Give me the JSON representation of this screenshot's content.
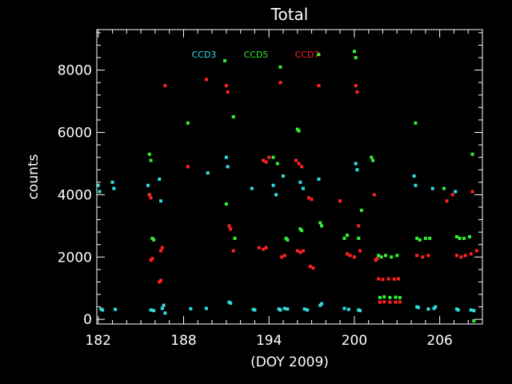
{
  "chart_data": {
    "type": "scatter",
    "title": "Total",
    "xlabel": "(DOY 2009)",
    "ylabel": "counts",
    "xlim": [
      181.9,
      209.0
    ],
    "ylim": [
      -150,
      9300
    ],
    "x_ticks": [
      182,
      188,
      194,
      200,
      206
    ],
    "y_ticks": [
      0,
      2000,
      4000,
      6000,
      8000
    ],
    "x_minor_step": 1,
    "y_minor_step": 400,
    "grid": false,
    "legend_position": "top",
    "series": [
      {
        "name": "CCD3",
        "color": "#33dddd",
        "points": [
          [
            182.0,
            4300
          ],
          [
            182.1,
            4100
          ],
          [
            182.2,
            330
          ],
          [
            182.3,
            300
          ],
          [
            183.0,
            4400
          ],
          [
            183.1,
            4200
          ],
          [
            183.2,
            320
          ],
          [
            185.5,
            4300
          ],
          [
            185.6,
            4000
          ],
          [
            185.7,
            300
          ],
          [
            185.9,
            280
          ],
          [
            186.3,
            4500
          ],
          [
            186.4,
            3800
          ],
          [
            186.5,
            350
          ],
          [
            186.6,
            450
          ],
          [
            186.7,
            200
          ],
          [
            188.5,
            340
          ],
          [
            189.6,
            350
          ],
          [
            189.7,
            4700
          ],
          [
            191.0,
            5200
          ],
          [
            191.1,
            4900
          ],
          [
            191.2,
            550
          ],
          [
            191.3,
            520
          ],
          [
            192.8,
            4200
          ],
          [
            192.9,
            320
          ],
          [
            193.0,
            300
          ],
          [
            194.3,
            4300
          ],
          [
            194.5,
            4000
          ],
          [
            194.7,
            330
          ],
          [
            194.8,
            300
          ],
          [
            195.0,
            4600
          ],
          [
            195.1,
            350
          ],
          [
            195.3,
            330
          ],
          [
            196.2,
            4400
          ],
          [
            196.4,
            4200
          ],
          [
            196.5,
            330
          ],
          [
            196.7,
            300
          ],
          [
            197.5,
            4500
          ],
          [
            197.6,
            450
          ],
          [
            197.7,
            500
          ],
          [
            199.3,
            350
          ],
          [
            199.6,
            320
          ],
          [
            200.1,
            5000
          ],
          [
            200.2,
            4800
          ],
          [
            200.3,
            300
          ],
          [
            200.4,
            280
          ],
          [
            204.2,
            4600
          ],
          [
            204.3,
            4300
          ],
          [
            204.4,
            400
          ],
          [
            204.5,
            380
          ],
          [
            205.2,
            330
          ],
          [
            205.5,
            4200
          ],
          [
            205.6,
            350
          ],
          [
            205.7,
            400
          ],
          [
            207.1,
            4100
          ],
          [
            207.2,
            330
          ],
          [
            207.3,
            300
          ],
          [
            208.2,
            300
          ],
          [
            208.4,
            280
          ]
        ]
      },
      {
        "name": "CCD5",
        "color": "#33ee33",
        "points": [
          [
            185.6,
            5300
          ],
          [
            185.7,
            5100
          ],
          [
            185.8,
            2600
          ],
          [
            185.9,
            2550
          ],
          [
            188.3,
            6300
          ],
          [
            190.9,
            8300
          ],
          [
            191.0,
            3700
          ],
          [
            191.5,
            6500
          ],
          [
            191.6,
            2600
          ],
          [
            194.3,
            5200
          ],
          [
            194.6,
            5000
          ],
          [
            194.8,
            8100
          ],
          [
            195.2,
            2600
          ],
          [
            195.3,
            2550
          ],
          [
            196.0,
            6100
          ],
          [
            196.1,
            6050
          ],
          [
            196.2,
            2900
          ],
          [
            196.3,
            2850
          ],
          [
            197.5,
            8500
          ],
          [
            197.6,
            3100
          ],
          [
            197.7,
            3000
          ],
          [
            199.3,
            2600
          ],
          [
            199.5,
            2700
          ],
          [
            200.0,
            8600
          ],
          [
            200.1,
            8400
          ],
          [
            200.3,
            2600
          ],
          [
            200.5,
            3500
          ],
          [
            201.2,
            5200
          ],
          [
            201.3,
            5100
          ],
          [
            201.7,
            2050
          ],
          [
            201.9,
            2000
          ],
          [
            202.2,
            2050
          ],
          [
            202.6,
            2000
          ],
          [
            203.0,
            2050
          ],
          [
            201.8,
            700
          ],
          [
            202.1,
            720
          ],
          [
            202.5,
            700
          ],
          [
            202.9,
            710
          ],
          [
            203.2,
            700
          ],
          [
            204.3,
            6300
          ],
          [
            204.4,
            2600
          ],
          [
            204.6,
            2550
          ],
          [
            205.0,
            2600
          ],
          [
            205.3,
            2600
          ],
          [
            206.3,
            4200
          ],
          [
            207.2,
            2650
          ],
          [
            207.4,
            2600
          ],
          [
            207.7,
            2600
          ],
          [
            208.1,
            2650
          ],
          [
            208.3,
            5300
          ],
          [
            208.4,
            -50
          ]
        ]
      },
      {
        "name": "CCD7",
        "color": "#ff2222",
        "points": [
          [
            185.6,
            4000
          ],
          [
            185.7,
            3900
          ],
          [
            185.7,
            1900
          ],
          [
            185.8,
            1950
          ],
          [
            186.4,
            2200
          ],
          [
            186.5,
            2300
          ],
          [
            186.3,
            1200
          ],
          [
            186.4,
            1250
          ],
          [
            186.7,
            7500
          ],
          [
            188.3,
            4900
          ],
          [
            189.6,
            7700
          ],
          [
            191.0,
            7500
          ],
          [
            191.1,
            7300
          ],
          [
            191.2,
            3000
          ],
          [
            191.3,
            2900
          ],
          [
            191.5,
            2200
          ],
          [
            193.3,
            2300
          ],
          [
            193.6,
            2250
          ],
          [
            193.8,
            2300
          ],
          [
            193.6,
            5100
          ],
          [
            193.8,
            5050
          ],
          [
            194.0,
            5200
          ],
          [
            194.8,
            7600
          ],
          [
            194.9,
            2000
          ],
          [
            195.1,
            2050
          ],
          [
            195.9,
            5100
          ],
          [
            196.1,
            5000
          ],
          [
            196.3,
            4900
          ],
          [
            196.0,
            2200
          ],
          [
            196.2,
            2150
          ],
          [
            196.4,
            2200
          ],
          [
            196.8,
            3900
          ],
          [
            197.0,
            3850
          ],
          [
            196.9,
            1700
          ],
          [
            197.1,
            1650
          ],
          [
            197.5,
            7500
          ],
          [
            199.0,
            3800
          ],
          [
            199.5,
            2100
          ],
          [
            199.7,
            2050
          ],
          [
            200.0,
            2000
          ],
          [
            200.1,
            7500
          ],
          [
            200.2,
            7300
          ],
          [
            200.3,
            3000
          ],
          [
            200.4,
            2200
          ],
          [
            201.4,
            4000
          ],
          [
            201.5,
            1900
          ],
          [
            201.6,
            1950
          ],
          [
            201.7,
            1300
          ],
          [
            202.0,
            1280
          ],
          [
            202.4,
            1300
          ],
          [
            202.8,
            1290
          ],
          [
            203.1,
            1300
          ],
          [
            201.8,
            550
          ],
          [
            202.1,
            560
          ],
          [
            202.5,
            550
          ],
          [
            202.9,
            550
          ],
          [
            203.2,
            560
          ],
          [
            204.4,
            2050
          ],
          [
            204.8,
            2000
          ],
          [
            205.2,
            2050
          ],
          [
            206.5,
            3800
          ],
          [
            206.9,
            4000
          ],
          [
            207.2,
            2050
          ],
          [
            207.5,
            2000
          ],
          [
            207.8,
            2050
          ],
          [
            208.2,
            2100
          ],
          [
            208.3,
            4100
          ],
          [
            208.6,
            2200
          ]
        ]
      }
    ]
  }
}
